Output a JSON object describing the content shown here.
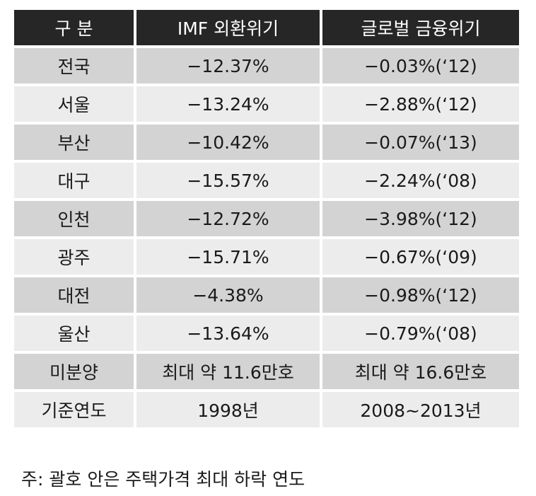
{
  "table": {
    "headers": [
      "구 분",
      "IMF 외환위기",
      "글로벌 금융위기"
    ],
    "rows": [
      [
        "전국",
        "−12.37%",
        "−0.03%(‘12)"
      ],
      [
        "서울",
        "−13.24%",
        "−2.88%(‘12)"
      ],
      [
        "부산",
        "−10.42%",
        "−0.07%(‘13)"
      ],
      [
        "대구",
        "−15.57%",
        "−2.24%(‘08)"
      ],
      [
        "인천",
        "−12.72%",
        "−3.98%(‘12)"
      ],
      [
        "광주",
        "−15.71%",
        "−0.67%(‘09)"
      ],
      [
        "대전",
        "−4.38%",
        "−0.98%(‘12)"
      ],
      [
        "울산",
        "−13.64%",
        "−0.79%(‘08)"
      ],
      [
        "미분양",
        "최대 약 11.6만호",
        "최대 약 16.6만호"
      ],
      [
        "기준연도",
        "1998년",
        "2008~2013년"
      ]
    ]
  },
  "note": "주: 괄호 안은 주택가격 최대 하락 연도",
  "colors": {
    "header_bg": "#262626",
    "row_dark": "#d3d3d3",
    "row_light": "#ececec"
  }
}
